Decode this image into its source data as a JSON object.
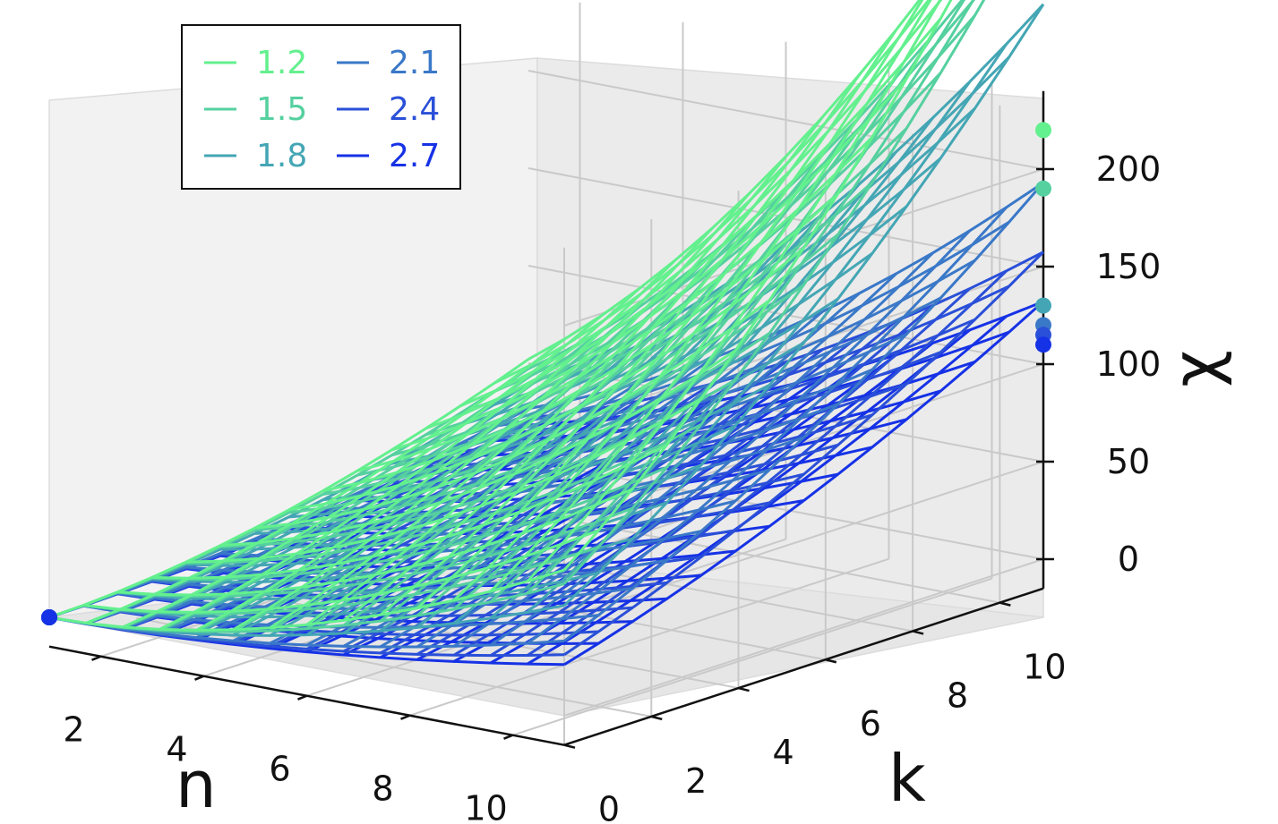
{
  "chart_data": {
    "type": "surface3d",
    "title": "",
    "xlabel": "n",
    "ylabel": "k",
    "zlabel": "χ",
    "x_ticks": [
      2,
      4,
      6,
      8,
      10
    ],
    "y_ticks": [
      0,
      2,
      4,
      6,
      8,
      10
    ],
    "z_ticks": [
      0,
      50,
      100,
      150,
      200
    ],
    "xlim": [
      1,
      11
    ],
    "ylim": [
      0,
      11
    ],
    "zlim": [
      -15,
      240
    ],
    "grid": true,
    "legend_position": "top-left",
    "legend_columns": 2,
    "series": [
      {
        "name": "1.2",
        "color": "#63f08e",
        "coef": 1.48,
        "points": [
          {
            "n": 1,
            "k": 0,
            "chi": 0
          },
          {
            "n": 11,
            "k": 11,
            "chi": 220
          }
        ]
      },
      {
        "name": "1.5",
        "color": "#55d09f",
        "coef": 1.34,
        "points": [
          {
            "n": 1,
            "k": 0,
            "chi": 0
          },
          {
            "n": 11,
            "k": 11,
            "chi": 190
          }
        ]
      },
      {
        "name": "1.8",
        "color": "#44a6b4",
        "coef": 1.12,
        "points": [
          {
            "n": 1,
            "k": 0,
            "chi": 0
          },
          {
            "n": 11,
            "k": 11,
            "chi": 130
          }
        ]
      },
      {
        "name": "2.1",
        "color": "#3a78c8",
        "coef": 0.76,
        "points": [
          {
            "n": 1,
            "k": 0,
            "chi": 0
          },
          {
            "n": 11,
            "k": 11,
            "chi": 120
          }
        ]
      },
      {
        "name": "2.4",
        "color": "#2a4fd8",
        "coef": 0.62,
        "points": [
          {
            "n": 1,
            "k": 0,
            "chi": 0
          },
          {
            "n": 11,
            "k": 11,
            "chi": 115
          }
        ]
      },
      {
        "name": "2.7",
        "color": "#1632e6",
        "coef": 0.52,
        "points": [
          {
            "n": 1,
            "k": 0,
            "chi": 0
          },
          {
            "n": 11,
            "k": 11,
            "chi": 110
          }
        ]
      }
    ]
  }
}
